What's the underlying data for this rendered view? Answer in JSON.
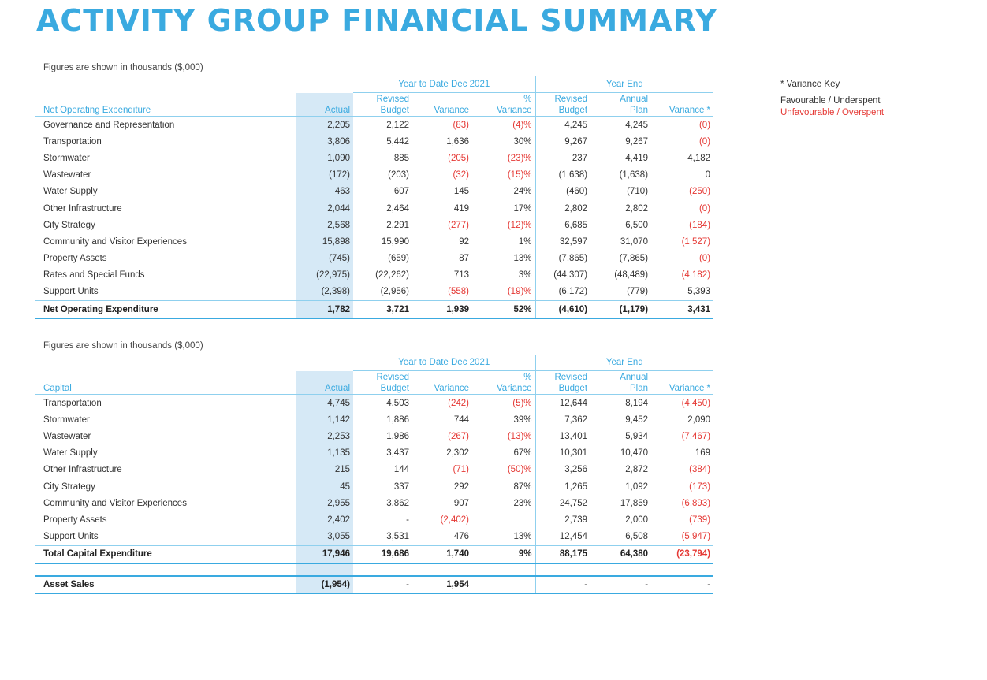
{
  "title": "ACTIVITY GROUP FINANCIAL SUMMARY",
  "note": "Figures are shown in thousands ($,000)",
  "key": {
    "title": "* Variance Key",
    "favourable": "Favourable / Underspent",
    "unfavourable": "Unfavourable / Overspent"
  },
  "headers": {
    "ytd": "Year to Date Dec 2021",
    "year_end": "Year End",
    "actual": "Actual",
    "revised": "Revised",
    "budget": "Budget",
    "variance": "Variance",
    "pct": "%",
    "annual": "Annual",
    "plan": "Plan",
    "variance_star": "Variance *"
  },
  "operating": {
    "section_label": "Net Operating Expenditure",
    "rows": [
      {
        "name": "Governance and Representation",
        "actual": "2,205",
        "rev_budget": "2,122",
        "variance": "(83)",
        "pct": "(4)%",
        "ye_rev_budget": "4,245",
        "annual_plan": "4,245",
        "ye_variance": "(0)"
      },
      {
        "name": "Transportation",
        "actual": "3,806",
        "rev_budget": "5,442",
        "variance": "1,636",
        "pct": "30%",
        "ye_rev_budget": "9,267",
        "annual_plan": "9,267",
        "ye_variance": "(0)"
      },
      {
        "name": "Stormwater",
        "actual": "1,090",
        "rev_budget": "885",
        "variance": "(205)",
        "pct": "(23)%",
        "ye_rev_budget": "237",
        "annual_plan": "4,419",
        "ye_variance": "4,182"
      },
      {
        "name": "Wastewater",
        "actual": "(172)",
        "rev_budget": "(203)",
        "variance": "(32)",
        "pct": "(15)%",
        "ye_rev_budget": "(1,638)",
        "annual_plan": "(1,638)",
        "ye_variance": "0"
      },
      {
        "name": "Water Supply",
        "actual": "463",
        "rev_budget": "607",
        "variance": "145",
        "pct": "24%",
        "ye_rev_budget": "(460)",
        "annual_plan": "(710)",
        "ye_variance": "(250)"
      },
      {
        "name": "Other Infrastructure",
        "actual": "2,044",
        "rev_budget": "2,464",
        "variance": "419",
        "pct": "17%",
        "ye_rev_budget": "2,802",
        "annual_plan": "2,802",
        "ye_variance": "(0)"
      },
      {
        "name": "City Strategy",
        "actual": "2,568",
        "rev_budget": "2,291",
        "variance": "(277)",
        "pct": "(12)%",
        "ye_rev_budget": "6,685",
        "annual_plan": "6,500",
        "ye_variance": "(184)"
      },
      {
        "name": "Community and Visitor Experiences",
        "actual": "15,898",
        "rev_budget": "15,990",
        "variance": "92",
        "pct": "1%",
        "ye_rev_budget": "32,597",
        "annual_plan": "31,070",
        "ye_variance": "(1,527)"
      },
      {
        "name": "Property Assets",
        "actual": "(745)",
        "rev_budget": "(659)",
        "variance": "87",
        "pct": "13%",
        "ye_rev_budget": "(7,865)",
        "annual_plan": "(7,865)",
        "ye_variance": "(0)"
      },
      {
        "name": "Rates and Special Funds",
        "actual": "(22,975)",
        "rev_budget": "(22,262)",
        "variance": "713",
        "pct": "3%",
        "ye_rev_budget": "(44,307)",
        "annual_plan": "(48,489)",
        "ye_variance": "(4,182)"
      },
      {
        "name": "Support Units",
        "actual": "(2,398)",
        "rev_budget": "(2,956)",
        "variance": "(558)",
        "pct": "(19)%",
        "ye_rev_budget": "(6,172)",
        "annual_plan": "(779)",
        "ye_variance": "5,393"
      }
    ],
    "total": {
      "name": "Net Operating Expenditure",
      "actual": "1,782",
      "rev_budget": "3,721",
      "variance": "1,939",
      "pct": "52%",
      "ye_rev_budget": "(4,610)",
      "annual_plan": "(1,179)",
      "ye_variance": "3,431"
    }
  },
  "capital": {
    "section_label": "Capital",
    "rows": [
      {
        "name": "Transportation",
        "actual": "4,745",
        "rev_budget": "4,503",
        "variance": "(242)",
        "pct": "(5)%",
        "ye_rev_budget": "12,644",
        "annual_plan": "8,194",
        "ye_variance": "(4,450)"
      },
      {
        "name": "Stormwater",
        "actual": "1,142",
        "rev_budget": "1,886",
        "variance": "744",
        "pct": "39%",
        "ye_rev_budget": "7,362",
        "annual_plan": "9,452",
        "ye_variance": "2,090"
      },
      {
        "name": "Wastewater",
        "actual": "2,253",
        "rev_budget": "1,986",
        "variance": "(267)",
        "pct": "(13)%",
        "ye_rev_budget": "13,401",
        "annual_plan": "5,934",
        "ye_variance": "(7,467)"
      },
      {
        "name": "Water Supply",
        "actual": "1,135",
        "rev_budget": "3,437",
        "variance": "2,302",
        "pct": "67%",
        "ye_rev_budget": "10,301",
        "annual_plan": "10,470",
        "ye_variance": "169"
      },
      {
        "name": "Other Infrastructure",
        "actual": "215",
        "rev_budget": "144",
        "variance": "(71)",
        "pct": "(50)%",
        "ye_rev_budget": "3,256",
        "annual_plan": "2,872",
        "ye_variance": "(384)"
      },
      {
        "name": "City Strategy",
        "actual": "45",
        "rev_budget": "337",
        "variance": "292",
        "pct": "87%",
        "ye_rev_budget": "1,265",
        "annual_plan": "1,092",
        "ye_variance": "(173)"
      },
      {
        "name": "Community and Visitor Experiences",
        "actual": "2,955",
        "rev_budget": "3,862",
        "variance": "907",
        "pct": "23%",
        "ye_rev_budget": "24,752",
        "annual_plan": "17,859",
        "ye_variance": "(6,893)"
      },
      {
        "name": "Property Assets",
        "actual": "2,402",
        "rev_budget": "-",
        "variance": "(2,402)",
        "pct": "",
        "ye_rev_budget": "2,739",
        "annual_plan": "2,000",
        "ye_variance": "(739)"
      },
      {
        "name": "Support Units",
        "actual": "3,055",
        "rev_budget": "3,531",
        "variance": "476",
        "pct": "13%",
        "ye_rev_budget": "12,454",
        "annual_plan": "6,508",
        "ye_variance": "(5,947)"
      }
    ],
    "total": {
      "name": "Total Capital Expenditure",
      "actual": "17,946",
      "rev_budget": "19,686",
      "variance": "1,740",
      "pct": "9%",
      "ye_rev_budget": "88,175",
      "annual_plan": "64,380",
      "ye_variance": "(23,794)"
    },
    "asset_sales": {
      "name": "Asset Sales",
      "actual": "(1,954)",
      "rev_budget": "-",
      "variance": "1,954",
      "pct": "",
      "ye_rev_budget": "-",
      "annual_plan": "-",
      "ye_variance": "-"
    }
  },
  "colors": {
    "accent": "#3aaae0",
    "actual_column": "#d6e9f6",
    "unfavourable": "#e53935"
  }
}
